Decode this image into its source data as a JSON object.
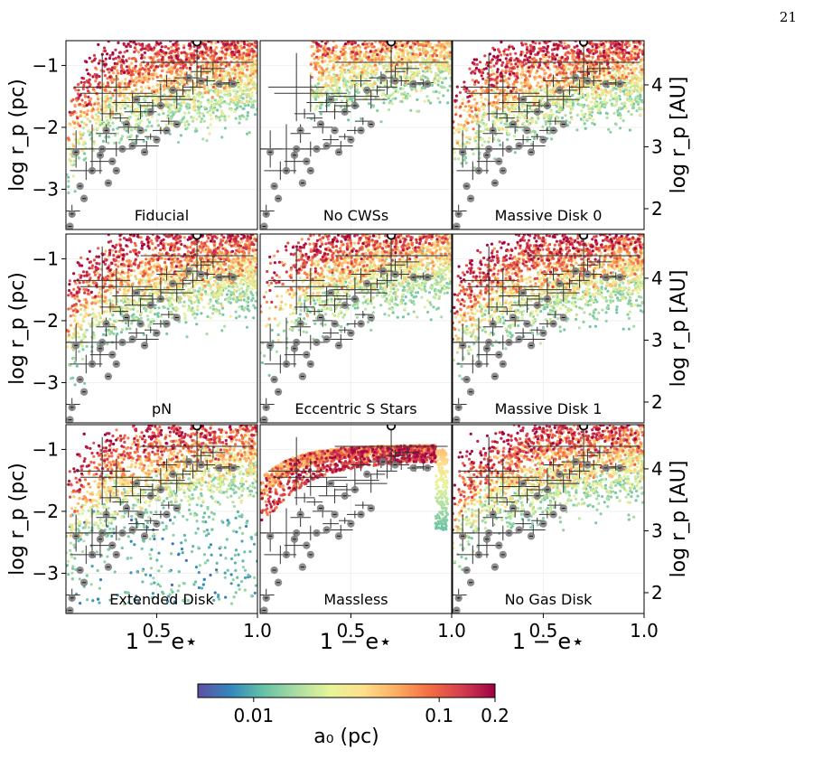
{
  "page_number": "21",
  "chart_data": {
    "type": "scatter",
    "layout": "3x3 grid of panels sharing axes",
    "shared_x": {
      "label": "1 − e⋆",
      "range": [
        0.05,
        1.0
      ],
      "ticks": [
        0.5,
        1.0
      ],
      "tick_labels": [
        "0.5",
        "1.0"
      ]
    },
    "shared_y_left": {
      "label": "log r_p (pc)",
      "range": [
        -3.65,
        -0.6
      ],
      "ticks": [
        -1,
        -2,
        -3
      ],
      "tick_labels": [
        "−1",
        "−2",
        "−3"
      ]
    },
    "shared_y_right": {
      "label": "log r_p [AU]",
      "ticks": [
        4,
        3,
        2
      ],
      "tick_labels": [
        "4",
        "3",
        "2"
      ],
      "conversion_offset": 5.314
    },
    "colorbar": {
      "label": "a₀ (pc)",
      "colormap": "Spectral_r",
      "scale": "log",
      "range": [
        0.005,
        0.2
      ],
      "ticks": [
        0.01,
        0.1,
        0.2
      ],
      "tick_labels": [
        "0.01",
        "0.1",
        "0.2"
      ],
      "colors": [
        "#5e4fa2",
        "#3288bd",
        "#66c2a5",
        "#abdda4",
        "#e6f598",
        "#fee08b",
        "#fdae61",
        "#f46d43",
        "#d53e4f",
        "#9e0142"
      ]
    },
    "panels": [
      {
        "label": "Fiducial",
        "row": 0,
        "col": 0,
        "model": "standard"
      },
      {
        "label": "No CWSs",
        "row": 0,
        "col": 1,
        "model": "no_cws"
      },
      {
        "label": "Massive Disk 0",
        "row": 0,
        "col": 2,
        "model": "standard"
      },
      {
        "label": "pN",
        "row": 1,
        "col": 0,
        "model": "standard"
      },
      {
        "label": "Eccentric S Stars",
        "row": 1,
        "col": 1,
        "model": "eccentric"
      },
      {
        "label": "Massive Disk 1",
        "row": 1,
        "col": 2,
        "model": "standard"
      },
      {
        "label": "Extended Disk",
        "row": 2,
        "col": 0,
        "model": "extended"
      },
      {
        "label": "Massless",
        "row": 2,
        "col": 1,
        "model": "massless"
      },
      {
        "label": "No Gas Disk",
        "row": 2,
        "col": 2,
        "model": "standard"
      }
    ],
    "observed_with_errors": [
      {
        "x": 0.23,
        "y": -1.35,
        "xerr": 0.14,
        "yerr": 0.55
      },
      {
        "x": 0.3,
        "y": -1.45,
        "xerr": 0.18,
        "yerr": 0.3
      },
      {
        "x": 0.38,
        "y": -1.6,
        "xerr": 0.1,
        "yerr": 0.15
      },
      {
        "x": 0.42,
        "y": -1.75,
        "xerr": 0.08,
        "yerr": 0.12
      },
      {
        "x": 0.48,
        "y": -1.65,
        "xerr": 0.06,
        "yerr": 0.1
      },
      {
        "x": 0.52,
        "y": -1.5,
        "xerr": 0.12,
        "yerr": 0.2
      },
      {
        "x": 0.55,
        "y": -1.25,
        "xerr": 0.05,
        "yerr": 0.1
      },
      {
        "x": 0.6,
        "y": -1.55,
        "xerr": 0.08,
        "yerr": 0.15
      },
      {
        "x": 0.63,
        "y": -1.4,
        "xerr": 0.04,
        "yerr": 0.08
      },
      {
        "x": 0.65,
        "y": -1.2,
        "xerr": 0.06,
        "yerr": 0.1
      },
      {
        "x": 0.68,
        "y": -1.35,
        "xerr": 0.05,
        "yerr": 0.12
      },
      {
        "x": 0.7,
        "y": -0.95,
        "xerr": 0.28,
        "yerr": 0.4
      },
      {
        "x": 0.72,
        "y": -1.1,
        "xerr": 0.05,
        "yerr": 0.1
      },
      {
        "x": 0.75,
        "y": -1.25,
        "xerr": 0.04,
        "yerr": 0.08
      },
      {
        "x": 0.78,
        "y": -1.05,
        "xerr": 0.06,
        "yerr": 0.1
      },
      {
        "x": 0.82,
        "y": -1.3,
        "xerr": 0.04,
        "yerr": 0.06
      },
      {
        "x": 0.86,
        "y": -1.28,
        "xerr": 0.05,
        "yerr": 0.06
      },
      {
        "x": 0.1,
        "y": -2.35,
        "xerr": 0.06,
        "yerr": 0.3
      },
      {
        "x": 0.18,
        "y": -2.35,
        "xerr": 0.14,
        "yerr": 0.4
      },
      {
        "x": 0.22,
        "y": -2.55,
        "xerr": 0.05,
        "yerr": 0.2
      },
      {
        "x": 0.25,
        "y": -2.1,
        "xerr": 0.05,
        "yerr": 0.15
      },
      {
        "x": 0.3,
        "y": -2.35,
        "xerr": 0.08,
        "yerr": 0.12
      },
      {
        "x": 0.36,
        "y": -2.0,
        "xerr": 0.05,
        "yerr": 0.1
      },
      {
        "x": 0.4,
        "y": -2.2,
        "xerr": 0.04,
        "yerr": 0.08
      },
      {
        "x": 0.45,
        "y": -2.3,
        "xerr": 0.06,
        "yerr": 0.08
      },
      {
        "x": 0.52,
        "y": -2.05,
        "xerr": 0.04,
        "yerr": 0.06
      },
      {
        "x": 0.56,
        "y": -1.9,
        "xerr": 0.04,
        "yerr": 0.06
      },
      {
        "x": 0.47,
        "y": -2.15,
        "xerr": 0.03,
        "yerr": 0.05
      },
      {
        "x": 0.32,
        "y": -1.85,
        "xerr": 0.04,
        "yerr": 0.06
      },
      {
        "x": 0.27,
        "y": -1.78,
        "xerr": 0.05,
        "yerr": 0.08
      },
      {
        "x": 0.15,
        "y": -2.7,
        "xerr": 0.08,
        "yerr": 0.15
      },
      {
        "x": 0.08,
        "y": -3.35,
        "xerr": 0.04,
        "yerr": 0.1
      }
    ],
    "observed_points": [
      {
        "x": 0.07,
        "y": -3.6
      },
      {
        "x": 0.08,
        "y": -3.4
      },
      {
        "x": 0.12,
        "y": -2.95
      },
      {
        "x": 0.14,
        "y": -3.15
      },
      {
        "x": 0.18,
        "y": -2.7
      },
      {
        "x": 0.22,
        "y": -2.45
      },
      {
        "x": 0.23,
        "y": -2.35
      },
      {
        "x": 0.26,
        "y": -2.9
      },
      {
        "x": 0.28,
        "y": -2.55
      },
      {
        "x": 0.33,
        "y": -2.35
      },
      {
        "x": 0.38,
        "y": -2.3
      },
      {
        "x": 0.44,
        "y": -2.4
      },
      {
        "x": 0.5,
        "y": -2.2
      },
      {
        "x": 0.55,
        "y": -2.05
      },
      {
        "x": 0.6,
        "y": -1.95
      },
      {
        "x": 0.25,
        "y": -2.05
      },
      {
        "x": 0.35,
        "y": -1.95
      },
      {
        "x": 0.42,
        "y": -2.05
      },
      {
        "x": 0.47,
        "y": -1.75
      },
      {
        "x": 0.52,
        "y": -1.65
      },
      {
        "x": 0.4,
        "y": -1.55
      },
      {
        "x": 0.58,
        "y": -1.4
      },
      {
        "x": 0.66,
        "y": -1.2
      },
      {
        "x": 0.72,
        "y": -1.25
      },
      {
        "x": 0.81,
        "y": -1.3
      },
      {
        "x": 0.88,
        "y": -1.3
      },
      {
        "x": 0.3,
        "y": -2.7
      },
      {
        "x": 0.1,
        "y": -2.4
      }
    ],
    "open_marker": {
      "x": 0.7,
      "y": -0.62
    }
  }
}
